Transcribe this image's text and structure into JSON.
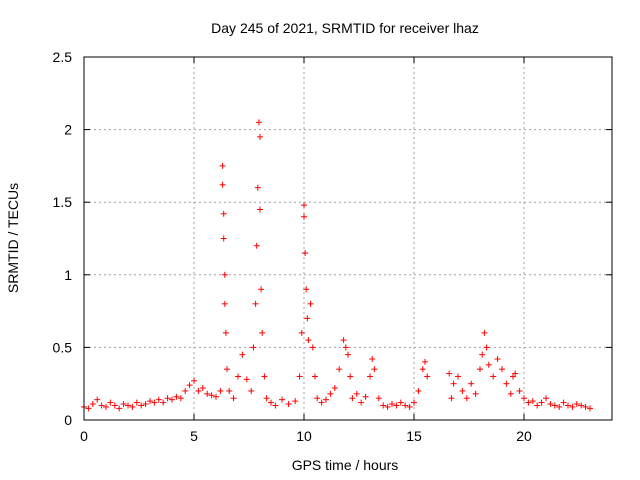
{
  "chart_data": {
    "type": "scatter",
    "title": "Day 245 of 2021, SRMTID for receiver lhaz",
    "xlabel": "GPS time / hours",
    "ylabel": "SRMTID / TECUs",
    "xlim": [
      0,
      24
    ],
    "ylim": [
      0,
      2.5
    ],
    "x_ticks": [
      0,
      5,
      10,
      15,
      20
    ],
    "x_tick_labels": [
      "0",
      "5",
      "10",
      "15",
      "20"
    ],
    "y_ticks": [
      0,
      0.5,
      1,
      1.5,
      2,
      2.5
    ],
    "y_tick_labels": [
      "0",
      "0.5",
      "1",
      "1.5",
      "2",
      "2.5"
    ],
    "grid": true,
    "marker": "+",
    "color": "#ff0000",
    "series": [
      {
        "name": "SRMTID",
        "x": [
          0.0,
          0.2,
          0.4,
          0.6,
          0.8,
          1.0,
          1.2,
          1.4,
          1.6,
          1.8,
          2.0,
          2.2,
          2.4,
          2.6,
          2.8,
          3.0,
          3.2,
          3.4,
          3.6,
          3.8,
          4.0,
          4.2,
          4.4,
          4.6,
          4.8,
          5.0,
          5.2,
          5.4,
          5.6,
          5.8,
          6.0,
          6.2,
          6.3,
          6.3,
          6.35,
          6.35,
          6.4,
          6.4,
          6.45,
          6.5,
          6.6,
          6.8,
          7.0,
          7.2,
          7.4,
          7.6,
          7.7,
          7.8,
          7.85,
          7.9,
          7.95,
          8.0,
          8.0,
          8.05,
          8.1,
          8.2,
          8.3,
          8.5,
          8.7,
          9.0,
          9.3,
          9.6,
          9.8,
          9.9,
          10.0,
          10.0,
          10.05,
          10.1,
          10.15,
          10.2,
          10.3,
          10.4,
          10.5,
          10.6,
          10.8,
          11.0,
          11.2,
          11.4,
          11.6,
          11.8,
          11.9,
          12.0,
          12.1,
          12.2,
          12.4,
          12.6,
          12.8,
          13.0,
          13.1,
          13.2,
          13.4,
          13.6,
          13.8,
          14.0,
          14.2,
          14.4,
          14.6,
          14.8,
          15.0,
          15.2,
          15.4,
          15.5,
          15.6,
          16.6,
          16.7,
          16.8,
          17.0,
          17.2,
          17.4,
          17.6,
          17.8,
          18.0,
          18.1,
          18.2,
          18.3,
          18.4,
          18.6,
          18.8,
          19.0,
          19.2,
          19.4,
          19.5,
          19.6,
          19.8,
          20.0,
          20.2,
          20.4,
          20.6,
          20.8,
          21.0,
          21.2,
          21.4,
          21.6,
          21.8,
          22.0,
          22.2,
          22.4,
          22.6,
          22.8,
          23.0
        ],
        "y": [
          0.09,
          0.08,
          0.11,
          0.14,
          0.1,
          0.09,
          0.12,
          0.1,
          0.08,
          0.11,
          0.1,
          0.09,
          0.12,
          0.1,
          0.11,
          0.13,
          0.12,
          0.14,
          0.12,
          0.15,
          0.14,
          0.16,
          0.15,
          0.2,
          0.24,
          0.27,
          0.2,
          0.22,
          0.18,
          0.17,
          0.16,
          0.2,
          1.75,
          1.62,
          1.42,
          1.25,
          1.0,
          0.8,
          0.6,
          0.35,
          0.2,
          0.15,
          0.3,
          0.45,
          0.28,
          0.2,
          0.5,
          0.8,
          1.2,
          1.6,
          2.05,
          1.95,
          1.45,
          0.9,
          0.6,
          0.3,
          0.15,
          0.12,
          0.1,
          0.14,
          0.11,
          0.13,
          0.3,
          0.6,
          1.48,
          1.4,
          1.15,
          0.9,
          0.7,
          0.55,
          0.8,
          0.5,
          0.3,
          0.15,
          0.12,
          0.14,
          0.18,
          0.22,
          0.35,
          0.55,
          0.5,
          0.45,
          0.3,
          0.15,
          0.18,
          0.12,
          0.16,
          0.3,
          0.42,
          0.35,
          0.15,
          0.1,
          0.09,
          0.11,
          0.1,
          0.12,
          0.1,
          0.09,
          0.12,
          0.2,
          0.35,
          0.4,
          0.3,
          0.32,
          0.15,
          0.25,
          0.3,
          0.2,
          0.15,
          0.25,
          0.18,
          0.35,
          0.45,
          0.6,
          0.5,
          0.38,
          0.3,
          0.42,
          0.35,
          0.25,
          0.18,
          0.3,
          0.32,
          0.2,
          0.15,
          0.12,
          0.13,
          0.1,
          0.12,
          0.15,
          0.11,
          0.1,
          0.09,
          0.12,
          0.1,
          0.09,
          0.11,
          0.1,
          0.09,
          0.08
        ]
      }
    ]
  }
}
